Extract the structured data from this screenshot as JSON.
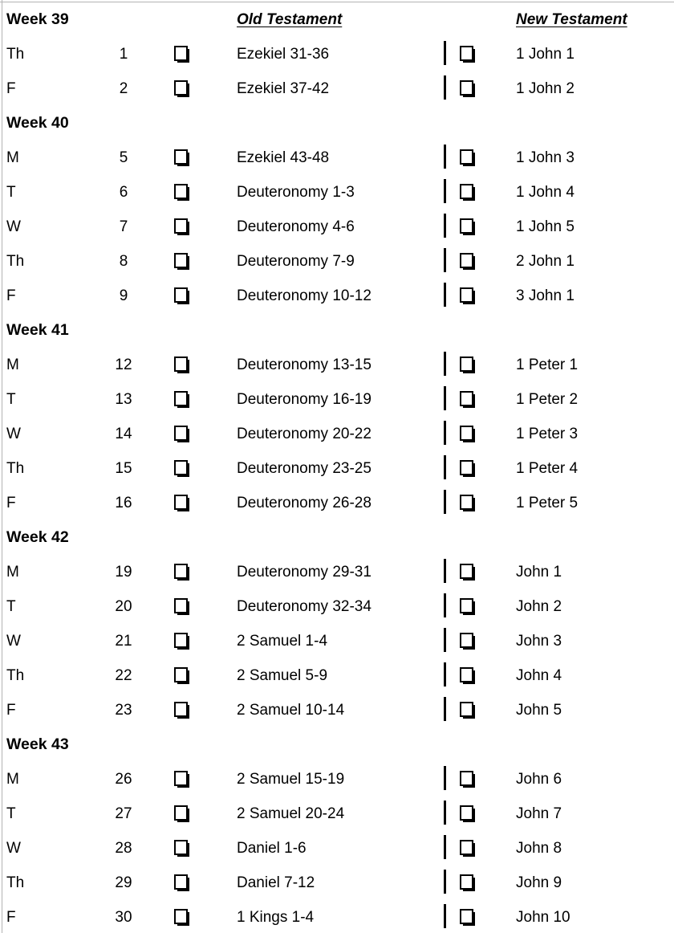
{
  "document": {
    "type": "bible-reading-plan-checklist",
    "separator": "|"
  },
  "columns": {
    "old_testament": "Old Testament",
    "new_testament": "New Testament"
  },
  "checkbox": {
    "state": "unchecked",
    "glyph": "shadowed-white-square"
  },
  "colors": {
    "text": "#000000",
    "background": "#ffffff",
    "gridline": "#b3b3b3"
  },
  "weeks": [
    {
      "label": "Week 39",
      "rows": [
        {
          "day": "Th",
          "date": "1",
          "ot": "Ezekiel 31-36",
          "nt": "1 John 1"
        },
        {
          "day": "F",
          "date": "2",
          "ot": "Ezekiel 37-42",
          "nt": "1 John 2"
        }
      ]
    },
    {
      "label": "Week 40",
      "rows": [
        {
          "day": "M",
          "date": "5",
          "ot": "Ezekiel 43-48",
          "nt": "1 John 3"
        },
        {
          "day": "T",
          "date": "6",
          "ot": "Deuteronomy 1-3",
          "nt": "1 John 4"
        },
        {
          "day": "W",
          "date": "7",
          "ot": "Deuteronomy 4-6",
          "nt": "1 John 5"
        },
        {
          "day": "Th",
          "date": "8",
          "ot": "Deuteronomy 7-9",
          "nt": "2 John 1"
        },
        {
          "day": "F",
          "date": "9",
          "ot": "Deuteronomy 10-12",
          "nt": "3 John 1"
        }
      ]
    },
    {
      "label": "Week 41",
      "rows": [
        {
          "day": "M",
          "date": "12",
          "ot": "Deuteronomy 13-15",
          "nt": "1 Peter 1"
        },
        {
          "day": "T",
          "date": "13",
          "ot": "Deuteronomy 16-19",
          "nt": "1 Peter 2"
        },
        {
          "day": "W",
          "date": "14",
          "ot": "Deuteronomy 20-22",
          "nt": "1 Peter 3"
        },
        {
          "day": "Th",
          "date": "15",
          "ot": "Deuteronomy 23-25",
          "nt": "1 Peter 4"
        },
        {
          "day": "F",
          "date": "16",
          "ot": "Deuteronomy 26-28",
          "nt": "1 Peter 5"
        }
      ]
    },
    {
      "label": "Week 42",
      "rows": [
        {
          "day": "M",
          "date": "19",
          "ot": "Deuteronomy 29-31",
          "nt": "John 1"
        },
        {
          "day": "T",
          "date": "20",
          "ot": "Deuteronomy 32-34",
          "nt": "John 2"
        },
        {
          "day": "W",
          "date": "21",
          "ot": "2 Samuel 1-4",
          "nt": "John 3"
        },
        {
          "day": "Th",
          "date": "22",
          "ot": "2 Samuel 5-9",
          "nt": "John 4"
        },
        {
          "day": "F",
          "date": "23",
          "ot": "2 Samuel 10-14",
          "nt": "John 5"
        }
      ]
    },
    {
      "label": "Week 43",
      "rows": [
        {
          "day": "M",
          "date": "26",
          "ot": "2 Samuel 15-19",
          "nt": "John 6"
        },
        {
          "day": "T",
          "date": "27",
          "ot": "2 Samuel 20-24",
          "nt": "John 7"
        },
        {
          "day": "W",
          "date": "28",
          "ot": "Daniel 1-6",
          "nt": "John 8"
        },
        {
          "day": "Th",
          "date": "29",
          "ot": "Daniel 7-12",
          "nt": "John 9"
        },
        {
          "day": "F",
          "date": "30",
          "ot": "1 Kings 1-4",
          "nt": "John 10"
        }
      ]
    }
  ]
}
